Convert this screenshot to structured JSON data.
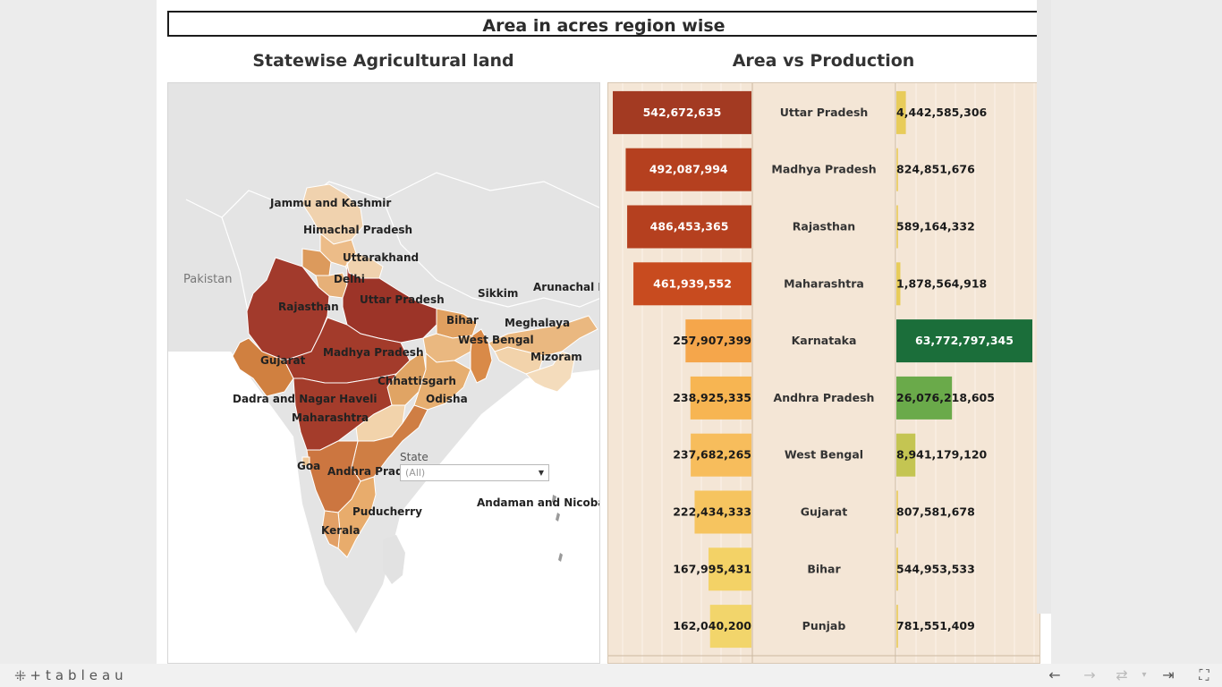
{
  "dashboard": {
    "title": "Area in acres region wise",
    "map_title": "Statewise Agricultural land",
    "chart_title": "Area vs Production"
  },
  "map": {
    "country_labels": [
      "Pakistan"
    ],
    "state_labels": [
      "Jammu and Kashmir",
      "Himachal Pradesh",
      "Uttarakhand",
      "Delhi",
      "Uttar Pradesh",
      "Rajasthan",
      "Sikkim",
      "Arunachal Pra",
      "Bihar",
      "Meghalaya",
      "West Bengal",
      "Mizoram",
      "Gujarat",
      "Madhya Pradesh",
      "Chhattisgarh",
      "Odisha",
      "Dadra and Nagar Haveli",
      "Maharashtra",
      "Goa",
      "Andhra Prades",
      "Puducherry",
      "Kerala",
      "Andaman and Nicobar Is"
    ],
    "filter": {
      "label": "State",
      "value": "(All)"
    },
    "colors": {
      "high": "#9e3228",
      "mid": "#cc7a42",
      "low": "#e8a868",
      "lighter": "#f0c898",
      "lightest": "#f6dcc0",
      "background": "#e6e6e6"
    }
  },
  "chart_data": {
    "type": "bar",
    "categories": [
      "Uttar Pradesh",
      "Madhya Pradesh",
      "Rajasthan",
      "Maharashtra",
      "Karnataka",
      "Andhra Pradesh",
      "West Bengal",
      "Gujarat",
      "Bihar",
      "Punjab"
    ],
    "series": [
      {
        "values": [
          542672635,
          492087994,
          486453365,
          461939552,
          257907399,
          238925335,
          237682265,
          222434333,
          167995431,
          162040200
        ]
      },
      {
        "values": [
          4442585306,
          824851676,
          589164332,
          1878564918,
          63772797345,
          26076218605,
          8941179120,
          807581678,
          544953533,
          781551409
        ]
      }
    ],
    "area_labels": [
      "542,672,635",
      "492,087,994",
      "486,453,365",
      "461,939,552",
      "257,907,399",
      "238,925,335",
      "237,682,265",
      "222,434,333",
      "167,995,431",
      "162,040,200"
    ],
    "production_labels": [
      "4,442,585,306",
      "824,851,676",
      "589,164,332",
      "1,878,564,918",
      "63,772,797,345",
      "26,076,218,605",
      "8,941,179,120",
      "807,581,678",
      "544,953,533",
      "781,551,409"
    ],
    "area_colors": [
      "#a33a22",
      "#b5401f",
      "#b5401f",
      "#c84b1f",
      "#f5a64b",
      "#f7b552",
      "#f7bd5c",
      "#f6c45f",
      "#f3d266",
      "#f2d56b"
    ],
    "production_colors": [
      "#e8cc5a",
      "#ecd070",
      "#ecd070",
      "#e8cc5a",
      "#1b6e3a",
      "#6aaa4a",
      "#c4c552",
      "#ecd070",
      "#ecd070",
      "#ecd070"
    ],
    "area_label_white": [
      true,
      true,
      true,
      true,
      false,
      false,
      false,
      false,
      false,
      false
    ],
    "production_label_white": [
      false,
      false,
      false,
      false,
      true,
      false,
      false,
      false,
      false,
      false
    ]
  },
  "footer": {
    "brand": "+tableau",
    "nav": {
      "undo": "←",
      "redo": "→",
      "revert": "⇥",
      "fullscreen": "⛶"
    }
  }
}
